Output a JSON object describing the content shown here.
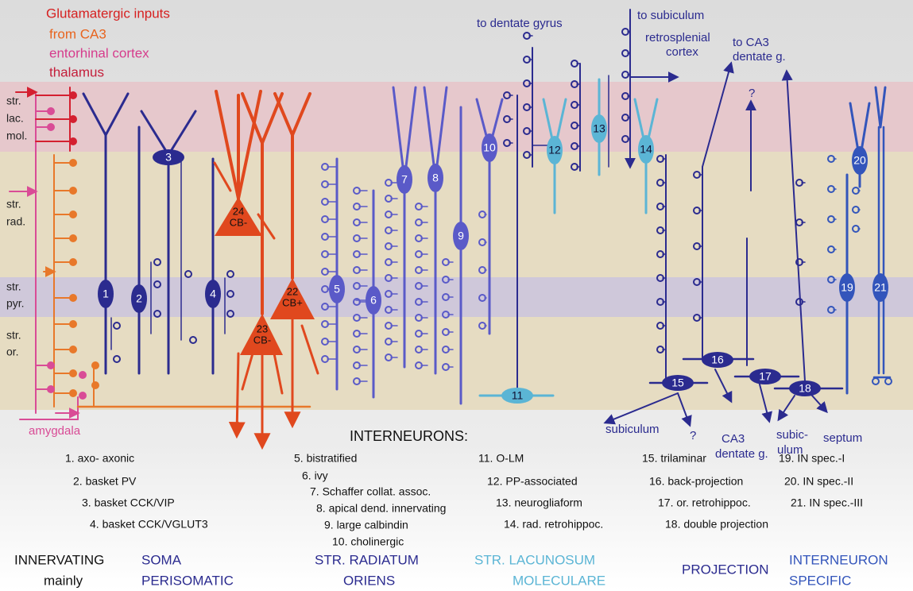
{
  "inputs": {
    "title": "Glutamatergic inputs",
    "items": [
      "from CA3",
      "entorhinal cortex",
      "thalamus"
    ],
    "amygdala": "amygdala"
  },
  "layers": [
    [
      "str.",
      "lac.",
      "mol."
    ],
    [
      "str.",
      "rad."
    ],
    [
      "str.",
      "pyr."
    ],
    [
      "str.",
      "or."
    ]
  ],
  "targets": [
    "to dentate gyrus",
    "to subiculum",
    "retrosplenial",
    "cortex",
    "to CA3",
    "dentate g.",
    "?",
    "subiculum",
    "?",
    "CA3",
    "dentate g.",
    "subic-",
    "ulum",
    "septum"
  ],
  "cells": [
    "1",
    "2",
    "3",
    "4",
    "5",
    "6",
    "7",
    "8",
    "9",
    "10",
    "11",
    "12",
    "13",
    "14",
    "15",
    "16",
    "17",
    "18",
    "19",
    "20",
    "21"
  ],
  "principal": [
    [
      "24",
      "CB-"
    ],
    [
      "22",
      "CB+"
    ],
    [
      "23",
      "CB-"
    ]
  ],
  "heading": "INTERNEURONS:",
  "legend": [
    [
      "1. axo- axonic",
      "2. basket PV",
      "3. basket CCK/VIP",
      "4. basket CCK/VGLUT3"
    ],
    [
      "5. bistratified",
      "6. ivy",
      "7. Schaffer collat. assoc.",
      "8. apical dend. innervating",
      "9.   large calbindin",
      "10. cholinergic"
    ],
    [
      "11.  O-LM",
      "12. PP-associated",
      "13. neurogliaform",
      "14. rad. retrohippoc."
    ],
    [
      "15. trilaminar",
      "16. back-projection",
      "17. or. retrohippoc.",
      "18. double projection"
    ],
    [
      "19. IN spec.-I",
      "20. IN spec.-II",
      "21. IN spec.-III"
    ]
  ],
  "categories": [
    [
      "INNERVATING",
      "mainly"
    ],
    [
      "SOMA",
      "PERISOMATIC"
    ],
    [
      "STR. RADIATUM",
      "ORIENS"
    ],
    [
      "STR. LACUNOSUM",
      "MOLECULARE"
    ],
    [
      "PROJECTION"
    ],
    [
      "INTERNEURON",
      "SPECIFIC"
    ]
  ]
}
